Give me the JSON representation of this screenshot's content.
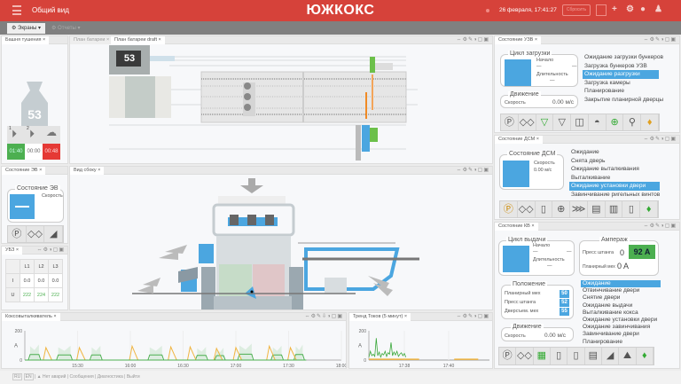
{
  "header": {
    "title": "Общий вид",
    "brand": "ЮЖКОКС",
    "datetime": "26 февраля, 17:41:27",
    "reset_label": "Сбросить",
    "accent": "#d6423a"
  },
  "toolbar": {
    "screens": "Экраны ▾",
    "reports": "Отчеты ▾"
  },
  "panels": {
    "tower": {
      "tab": "Башня тушения",
      "number": "53",
      "btn1": "1",
      "btn2": "2",
      "time1": "01:40",
      "time2": "00:00",
      "time3": "00:48"
    },
    "plan_tab": "План батареи",
    "plan_draft": {
      "tab": "План батареи draft",
      "number": "53"
    },
    "ev": {
      "tab": "Состояние ЭВ",
      "group": "Состояние ЭВ",
      "speed_label": "Скорость"
    },
    "ubz": {
      "tab": "УБЗ",
      "cols": [
        "L1",
        "L2",
        "L3"
      ],
      "rows": [
        {
          "label": "I",
          "values": [
            "0.0",
            "0.0",
            "0.0"
          ]
        },
        {
          "label": "U",
          "values": [
            "222",
            "224",
            "222"
          ]
        }
      ]
    },
    "side": {
      "tab": "Вид сбоку"
    },
    "uzv": {
      "tab": "Состояние УЗВ",
      "cycle": "Цикл загрузки",
      "start": "Начало",
      "start_val": "—",
      "start_val2": "—",
      "duration": "Длительность",
      "duration_val": "—",
      "move": "Движение",
      "speed": "Скорость",
      "speed_val": "0.00 м/с",
      "states": [
        "Ожидание загрузки бункеров",
        "Загрузка бункеров УЗВ",
        "Ожидание разгрузки",
        "Загрузка камеры",
        "Планирование",
        "Закрытие планирной дверцы"
      ],
      "selected": 2
    },
    "dsm": {
      "tab": "Состояние ДСМ",
      "group": "Состояние ДСМ",
      "speed": "Скорость",
      "speed_val": "0.00 м/с",
      "states": [
        "Ожидание",
        "Снята дверь",
        "Ожидание выталкивания",
        "Выталкивание",
        "Ожидание установки двери",
        "Завинчивание ригельных винтов"
      ],
      "selected": 4
    },
    "kv": {
      "tab": "Состояние КВ",
      "cycle": "Цикл выдачи",
      "start": "Начало",
      "start_val": "—",
      "start_val2": "—",
      "duration": "Длительность",
      "duration_val": "—",
      "amps": "Ампераж",
      "press_label": "Пресс штанга",
      "press_zero": "0",
      "press_val": "92 A",
      "plan_label": "Планирный мех",
      "plan_val": "0 A",
      "position": "Положение",
      "pos_items": [
        {
          "label": "Планирный мех",
          "value": "50"
        },
        {
          "label": "Пресс штанга",
          "value": "52"
        },
        {
          "label": "Дверсъем. мех",
          "value": "55"
        }
      ],
      "move": "Движение",
      "speed": "Скорость",
      "speed_val": "0.00 м/с",
      "states": [
        "Ожидание",
        "Отвинчивание двери",
        "Снятие двери",
        "Ожидание выдачи",
        "Выталкивание кокса",
        "Ожидание установки двери",
        "Ожидание завинчивания",
        "Завинчивание двери",
        "Планирование"
      ],
      "selected": 0
    }
  },
  "chart_data": [
    {
      "type": "line",
      "tab": "Коксовыталкиватель",
      "ylabel": "A",
      "ylim": [
        0,
        200
      ],
      "yticks": [
        "0",
        "200"
      ],
      "xlim": [
        "15:00",
        "18:00"
      ],
      "xticks": [
        "15:30",
        "16:00",
        "16:30",
        "17:00",
        "17:30",
        "18:00"
      ],
      "grid": true,
      "series": [
        {
          "color": "#f0b542",
          "peaks": [
            {
              "x": "15:12",
              "y": 85
            },
            {
              "x": "15:31",
              "y": 85
            },
            {
              "x": "16:01",
              "y": 95
            },
            {
              "x": "16:23",
              "y": 90
            },
            {
              "x": "16:34",
              "y": 90
            },
            {
              "x": "16:49",
              "y": 80
            },
            {
              "x": "17:00",
              "y": 85
            },
            {
              "x": "17:19",
              "y": 95
            },
            {
              "x": "17:31",
              "y": 85
            }
          ]
        },
        {
          "color": "#4caf50",
          "plateaus": [
            {
              "from": "15:03",
              "to": "15:08",
              "y": 38
            },
            {
              "from": "15:19",
              "to": "15:26",
              "y": 35
            },
            {
              "from": "15:38",
              "to": "15:43",
              "y": 35
            },
            {
              "from": "16:11",
              "to": "16:18",
              "y": 35
            },
            {
              "from": "16:38",
              "to": "16:43",
              "y": 32
            },
            {
              "from": "16:49",
              "to": "16:53",
              "y": 30
            },
            {
              "from": "17:02",
              "to": "17:09",
              "y": 40
            },
            {
              "from": "17:21",
              "to": "17:26",
              "y": 35
            },
            {
              "from": "17:34",
              "to": "17:38",
              "y": 38
            }
          ]
        }
      ]
    },
    {
      "type": "line",
      "tab": "Тренд Токов (5 минут)",
      "ylabel": "A",
      "ylim": [
        0,
        200
      ],
      "yticks": [
        "0",
        "200"
      ],
      "xticks": [
        "17:38",
        "17:40"
      ],
      "grid": true,
      "series": [
        {
          "color": "#3aa83a",
          "start": "17:36:24",
          "step_seconds": 4,
          "values": [
            20,
            60,
            30,
            40,
            25,
            150,
            30,
            55,
            20,
            45,
            35,
            60,
            25,
            50,
            40,
            120,
            30,
            55,
            35,
            60,
            25,
            40,
            50,
            30,
            45,
            20
          ]
        },
        {
          "color": "#f0b542",
          "segments": [
            {
              "from": "17:36:24",
              "to": "17:38:40",
              "y": 5
            },
            {
              "from": "17:40:15",
              "to": "17:41:20",
              "y": 5
            }
          ]
        }
      ]
    }
  ],
  "status": {
    "lang1": "RU",
    "lang2": "EN",
    "alarms": "▲ Нет аварий",
    "messages": "Сообщения",
    "diagnostics": "Диагностика",
    "exit": "Выйти"
  }
}
